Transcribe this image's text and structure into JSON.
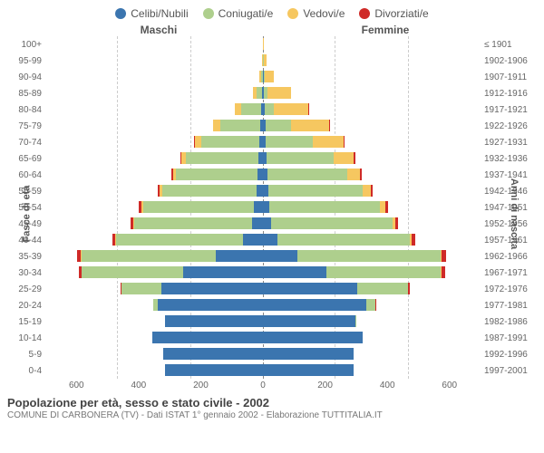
{
  "chart": {
    "type": "population-pyramid",
    "legend": [
      {
        "label": "Celibi/Nubili",
        "color": "#3b75af"
      },
      {
        "label": "Coniugati/e",
        "color": "#aecf8d"
      },
      {
        "label": "Vedovi/e",
        "color": "#f6c760"
      },
      {
        "label": "Divorziati/e",
        "color": "#cf2a27"
      }
    ],
    "gender_left": "Maschi",
    "gender_right": "Femmine",
    "ylabel_left": "Fasce di età",
    "ylabel_right": "Anni di nascita",
    "xmax": 600,
    "xticks": [
      600,
      400,
      200,
      0,
      200,
      400,
      600
    ],
    "age_groups": [
      "100+",
      "95-99",
      "90-94",
      "85-89",
      "80-84",
      "75-79",
      "70-74",
      "65-69",
      "60-64",
      "55-59",
      "50-54",
      "45-49",
      "40-44",
      "35-39",
      "30-34",
      "25-29",
      "20-24",
      "15-19",
      "10-14",
      "5-9",
      "0-4"
    ],
    "birth_years": [
      "≤ 1901",
      "1902-1906",
      "1907-1911",
      "1912-1916",
      "1917-1921",
      "1922-1926",
      "1927-1931",
      "1932-1936",
      "1937-1941",
      "1942-1946",
      "1947-1951",
      "1952-1956",
      "1957-1961",
      "1962-1966",
      "1967-1971",
      "1972-1976",
      "1977-1981",
      "1982-1986",
      "1987-1991",
      "1992-1996",
      "1997-2001"
    ],
    "data": {
      "male": [
        {
          "c0": 0,
          "c1": 0,
          "c2": 0,
          "c3": 0
        },
        {
          "c0": 0,
          "c1": 0,
          "c2": 2,
          "c3": 0
        },
        {
          "c0": 1,
          "c1": 3,
          "c2": 5,
          "c3": 0
        },
        {
          "c0": 2,
          "c1": 15,
          "c2": 10,
          "c3": 0
        },
        {
          "c0": 5,
          "c1": 55,
          "c2": 18,
          "c3": 0
        },
        {
          "c0": 8,
          "c1": 110,
          "c2": 20,
          "c3": 0
        },
        {
          "c0": 10,
          "c1": 160,
          "c2": 18,
          "c3": 3
        },
        {
          "c0": 12,
          "c1": 200,
          "c2": 12,
          "c3": 4
        },
        {
          "c0": 14,
          "c1": 225,
          "c2": 8,
          "c3": 5
        },
        {
          "c0": 18,
          "c1": 260,
          "c2": 6,
          "c3": 6
        },
        {
          "c0": 25,
          "c1": 305,
          "c2": 5,
          "c3": 7
        },
        {
          "c0": 30,
          "c1": 325,
          "c2": 3,
          "c3": 8
        },
        {
          "c0": 55,
          "c1": 350,
          "c2": 2,
          "c3": 8
        },
        {
          "c0": 130,
          "c1": 370,
          "c2": 2,
          "c3": 10
        },
        {
          "c0": 220,
          "c1": 280,
          "c2": 1,
          "c3": 7
        },
        {
          "c0": 280,
          "c1": 110,
          "c2": 0,
          "c3": 3
        },
        {
          "c0": 290,
          "c1": 12,
          "c2": 0,
          "c3": 0
        },
        {
          "c0": 270,
          "c1": 0,
          "c2": 0,
          "c3": 0
        },
        {
          "c0": 305,
          "c1": 0,
          "c2": 0,
          "c3": 0
        },
        {
          "c0": 275,
          "c1": 0,
          "c2": 0,
          "c3": 0
        },
        {
          "c0": 270,
          "c1": 0,
          "c2": 0,
          "c3": 0
        }
      ],
      "female": [
        {
          "c0": 0,
          "c1": 0,
          "c2": 3,
          "c3": 0
        },
        {
          "c0": 1,
          "c1": 1,
          "c2": 8,
          "c3": 0
        },
        {
          "c0": 2,
          "c1": 2,
          "c2": 25,
          "c3": 0
        },
        {
          "c0": 3,
          "c1": 10,
          "c2": 65,
          "c3": 0
        },
        {
          "c0": 5,
          "c1": 25,
          "c2": 95,
          "c3": 1
        },
        {
          "c0": 7,
          "c1": 70,
          "c2": 105,
          "c3": 2
        },
        {
          "c0": 8,
          "c1": 130,
          "c2": 85,
          "c3": 3
        },
        {
          "c0": 10,
          "c1": 185,
          "c2": 55,
          "c3": 4
        },
        {
          "c0": 12,
          "c1": 220,
          "c2": 35,
          "c3": 5
        },
        {
          "c0": 15,
          "c1": 260,
          "c2": 22,
          "c3": 6
        },
        {
          "c0": 18,
          "c1": 305,
          "c2": 15,
          "c3": 7
        },
        {
          "c0": 22,
          "c1": 335,
          "c2": 8,
          "c3": 8
        },
        {
          "c0": 40,
          "c1": 365,
          "c2": 5,
          "c3": 10
        },
        {
          "c0": 95,
          "c1": 395,
          "c2": 3,
          "c3": 12
        },
        {
          "c0": 175,
          "c1": 315,
          "c2": 2,
          "c3": 10
        },
        {
          "c0": 260,
          "c1": 140,
          "c2": 1,
          "c3": 4
        },
        {
          "c0": 285,
          "c1": 25,
          "c2": 0,
          "c3": 1
        },
        {
          "c0": 255,
          "c1": 2,
          "c2": 0,
          "c3": 0
        },
        {
          "c0": 275,
          "c1": 0,
          "c2": 0,
          "c3": 0
        },
        {
          "c0": 250,
          "c1": 0,
          "c2": 0,
          "c3": 0
        },
        {
          "c0": 250,
          "c1": 0,
          "c2": 0,
          "c3": 0
        }
      ]
    },
    "colors": {
      "c0": "#3b75af",
      "c1": "#aecf8d",
      "c2": "#f6c760",
      "c3": "#cf2a27"
    },
    "background_color": "#ffffff",
    "grid_color": "#cccccc",
    "title": "Popolazione per età, sesso e stato civile - 2002",
    "subtitle": "COMUNE DI CARBONERA (TV) - Dati ISTAT 1° gennaio 2002 - Elaborazione TUTTITALIA.IT"
  }
}
